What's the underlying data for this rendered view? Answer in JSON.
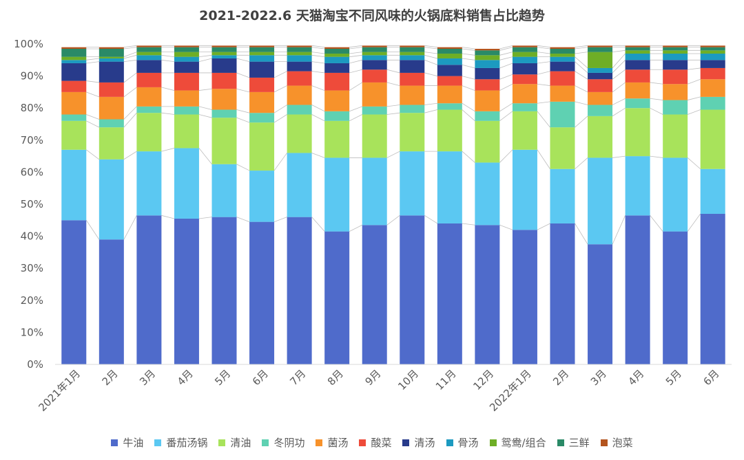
{
  "chart_data": {
    "type": "bar",
    "stacked": true,
    "title": "2021-2022.6 天猫淘宝不同风味的火锅底料销售占比趋势",
    "categories": [
      "2021年1月",
      "2月",
      "3月",
      "4月",
      "5月",
      "6月",
      "7月",
      "8月",
      "9月",
      "10月",
      "11月",
      "12月",
      "2022年1月",
      "2月",
      "3月",
      "4月",
      "5月",
      "6月"
    ],
    "y_ticks": [
      "0%",
      "10%",
      "20%",
      "30%",
      "40%",
      "50%",
      "60%",
      "70%",
      "80%",
      "90%",
      "100%"
    ],
    "ylim": [
      0,
      100
    ],
    "grid": false,
    "legend_position": "bottom",
    "series": [
      {
        "name": "牛油",
        "color": "#4F6BCB",
        "values": [
          45,
          39,
          46.5,
          45.5,
          46,
          44.5,
          46,
          41.5,
          43.5,
          46.5,
          44,
          43.5,
          42,
          44,
          37.5,
          46.5,
          41.5,
          47
        ]
      },
      {
        "name": "番茄汤锅",
        "color": "#5BC8F2",
        "values": [
          22,
          25,
          20,
          22,
          16.5,
          16,
          20,
          23,
          21,
          20,
          22.5,
          19.5,
          25,
          17,
          27,
          18.5,
          23,
          14
        ]
      },
      {
        "name": "清油",
        "color": "#A8E35B",
        "values": [
          9,
          10,
          12,
          10.5,
          14.5,
          15,
          12,
          11.5,
          13.5,
          12,
          13,
          13,
          12,
          13,
          13,
          15,
          13.5,
          18.5
        ]
      },
      {
        "name": "冬阴功",
        "color": "#5FD1B2",
        "values": [
          2,
          2.5,
          2,
          2.5,
          2.5,
          3,
          3,
          3,
          2.5,
          2.5,
          2,
          3,
          2.5,
          8,
          3.5,
          3,
          4.5,
          4
        ]
      },
      {
        "name": "菌汤",
        "color": "#F7922B",
        "values": [
          7,
          7,
          6,
          5,
          6.5,
          6.5,
          6,
          6.5,
          7.5,
          6,
          5.5,
          6.5,
          6,
          5,
          4,
          5,
          5,
          5.5
        ]
      },
      {
        "name": "酸菜",
        "color": "#EE4B3A",
        "values": [
          3.5,
          4.5,
          4.5,
          5.5,
          5,
          4.5,
          4.5,
          5.5,
          4,
          4,
          3,
          3.5,
          3,
          4.5,
          4,
          4,
          4.5,
          3.5
        ]
      },
      {
        "name": "清汤",
        "color": "#283B8B",
        "values": [
          5.5,
          6.5,
          4,
          3.5,
          4.5,
          5,
          3,
          3,
          3,
          4,
          3.5,
          3.5,
          3.5,
          3,
          2,
          3,
          3,
          2.5
        ]
      },
      {
        "name": "骨汤",
        "color": "#1C9AC0",
        "values": [
          1,
          1,
          1.5,
          1.5,
          1,
          2,
          2,
          2,
          1.5,
          1.5,
          2,
          2.5,
          2,
          1.5,
          1.5,
          2,
          2,
          2
        ]
      },
      {
        "name": "鸳鸯/组合",
        "color": "#6EAE26",
        "values": [
          1,
          0.5,
          1,
          1.5,
          1,
          1,
          1,
          1,
          1,
          1,
          1.5,
          1.5,
          1.5,
          1,
          5,
          1,
          1,
          1
        ]
      },
      {
        "name": "三鲜",
        "color": "#2A8A67",
        "values": [
          2.5,
          2.5,
          1.5,
          1.5,
          1.5,
          1.5,
          1.5,
          1.5,
          1.5,
          1.5,
          1.5,
          1.5,
          1.5,
          1.5,
          1.5,
          1,
          1,
          1
        ]
      },
      {
        "name": "泡菜",
        "color": "#B3541E",
        "values": [
          0.5,
          0.5,
          0.5,
          0.5,
          0.5,
          0.5,
          0.5,
          0.5,
          0.5,
          0.5,
          0.5,
          0.5,
          0.5,
          0.5,
          0.5,
          0.5,
          0.5,
          0.5
        ]
      }
    ]
  }
}
